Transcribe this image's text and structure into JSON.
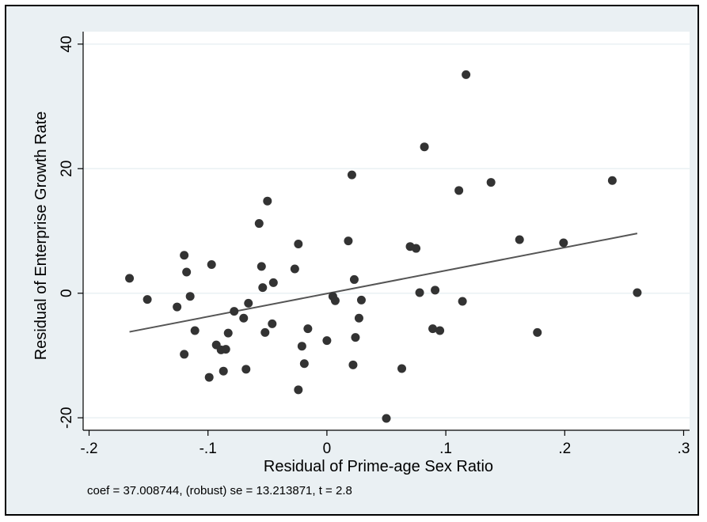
{
  "chart_data": {
    "type": "scatter",
    "xlabel": "Residual of Prime-age Sex Ratio",
    "ylabel": "Residual of Enterprise Growth Rate",
    "note": "coef = 37.008744, (robust) se = 13.213871, t = 2.8",
    "xlim": [
      -0.205,
      0.305
    ],
    "ylim": [
      -22,
      42
    ],
    "xticks": [
      -0.2,
      -0.1,
      0,
      0.1,
      0.2,
      0.3
    ],
    "xtick_labels": [
      "-.2",
      "-.1",
      "0",
      ".1",
      ".2",
      ".3"
    ],
    "yticks": [
      -20,
      0,
      20,
      40
    ],
    "ytick_labels": [
      "-20",
      "0",
      "20",
      "40"
    ],
    "grid": true,
    "colors": {
      "point": "#333333",
      "line": "#555555",
      "plot_bg": "#ffffff",
      "outer_bg": "#eaf0f3",
      "grid": "#eaf0f3"
    },
    "fit_line": {
      "x": [
        -0.166,
        0.261
      ],
      "y": [
        -6.2,
        9.6
      ]
    },
    "points": [
      {
        "x": -0.166,
        "y": 2.4
      },
      {
        "x": -0.151,
        "y": -1.0
      },
      {
        "x": -0.126,
        "y": -2.2
      },
      {
        "x": -0.12,
        "y": 6.1
      },
      {
        "x": -0.118,
        "y": 3.4
      },
      {
        "x": -0.115,
        "y": -0.5
      },
      {
        "x": -0.12,
        "y": -9.8
      },
      {
        "x": -0.111,
        "y": -6.0
      },
      {
        "x": -0.099,
        "y": -13.5
      },
      {
        "x": -0.097,
        "y": 4.6
      },
      {
        "x": -0.093,
        "y": -8.3
      },
      {
        "x": -0.089,
        "y": -9.1
      },
      {
        "x": -0.087,
        "y": -12.5
      },
      {
        "x": -0.085,
        "y": -9.0
      },
      {
        "x": -0.083,
        "y": -6.4
      },
      {
        "x": -0.078,
        "y": -2.9
      },
      {
        "x": -0.07,
        "y": -4.0
      },
      {
        "x": -0.066,
        "y": -1.6
      },
      {
        "x": -0.068,
        "y": -12.2
      },
      {
        "x": -0.057,
        "y": 11.2
      },
      {
        "x": -0.055,
        "y": 4.3
      },
      {
        "x": -0.054,
        "y": 0.9
      },
      {
        "x": -0.052,
        "y": -6.3
      },
      {
        "x": -0.05,
        "y": 14.8
      },
      {
        "x": -0.045,
        "y": 1.7
      },
      {
        "x": -0.046,
        "y": -4.9
      },
      {
        "x": -0.027,
        "y": 3.9
      },
      {
        "x": -0.024,
        "y": 7.9
      },
      {
        "x": -0.024,
        "y": -15.5
      },
      {
        "x": -0.021,
        "y": -8.5
      },
      {
        "x": -0.019,
        "y": -11.3
      },
      {
        "x": -0.016,
        "y": -5.7
      },
      {
        "x": 0.0,
        "y": -7.6
      },
      {
        "x": 0.005,
        "y": -0.5
      },
      {
        "x": 0.007,
        "y": -1.2
      },
      {
        "x": 0.018,
        "y": 8.4
      },
      {
        "x": 0.021,
        "y": 19.0
      },
      {
        "x": 0.022,
        "y": -11.5
      },
      {
        "x": 0.023,
        "y": 2.2
      },
      {
        "x": 0.024,
        "y": -7.1
      },
      {
        "x": 0.027,
        "y": -4.0
      },
      {
        "x": 0.029,
        "y": -1.1
      },
      {
        "x": 0.05,
        "y": -20.1
      },
      {
        "x": 0.063,
        "y": -12.1
      },
      {
        "x": 0.07,
        "y": 7.5
      },
      {
        "x": 0.075,
        "y": 7.2
      },
      {
        "x": 0.078,
        "y": 0.1
      },
      {
        "x": 0.082,
        "y": 23.5
      },
      {
        "x": 0.089,
        "y": -5.7
      },
      {
        "x": 0.091,
        "y": 0.5
      },
      {
        "x": 0.095,
        "y": -6.0
      },
      {
        "x": 0.111,
        "y": 16.5
      },
      {
        "x": 0.114,
        "y": -1.3
      },
      {
        "x": 0.117,
        "y": 35.1
      },
      {
        "x": 0.138,
        "y": 17.8
      },
      {
        "x": 0.162,
        "y": 8.6
      },
      {
        "x": 0.177,
        "y": -6.3
      },
      {
        "x": 0.199,
        "y": 8.1
      },
      {
        "x": 0.24,
        "y": 18.1
      },
      {
        "x": 0.261,
        "y": 0.1
      }
    ]
  }
}
